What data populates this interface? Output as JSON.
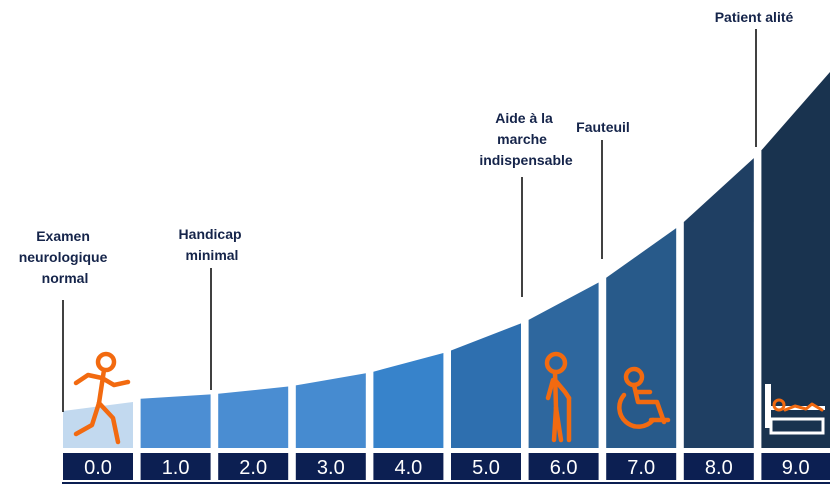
{
  "scale": {
    "steps": [
      {
        "value": "0.0",
        "color": "#c2d9ef"
      },
      {
        "value": "1.0",
        "color": "#4c8ed3"
      },
      {
        "value": "2.0",
        "color": "#4a8dd2"
      },
      {
        "value": "3.0",
        "color": "#468bd0"
      },
      {
        "value": "4.0",
        "color": "#3783cb"
      },
      {
        "value": "5.0",
        "color": "#2e6faf"
      },
      {
        "value": "6.0",
        "color": "#2e679e"
      },
      {
        "value": "7.0",
        "color": "#285a8a"
      },
      {
        "value": "8.0",
        "color": "#1f3f63"
      },
      {
        "value": "9.0",
        "color": "#19334f"
      }
    ],
    "number_box_color": "#0c1f52",
    "label_color": "#15244a",
    "icon_color": "#f26a10"
  },
  "annotations": [
    {
      "id": "examen",
      "lines": [
        "Examen",
        "neurologique",
        "normal"
      ]
    },
    {
      "id": "handicap",
      "lines": [
        "Handicap",
        "minimal"
      ]
    },
    {
      "id": "aide",
      "lines": [
        "Aide à la",
        "marche",
        "indispensable"
      ]
    },
    {
      "id": "fauteuil",
      "lines": [
        "Fauteuil"
      ]
    },
    {
      "id": "alite",
      "lines": [
        "Patient alité"
      ]
    }
  ],
  "icons": [
    {
      "id": "walking",
      "name": "walking-person-icon"
    },
    {
      "id": "cane",
      "name": "person-with-cane-icon"
    },
    {
      "id": "wheelchair",
      "name": "wheelchair-icon"
    },
    {
      "id": "bed",
      "name": "bedridden-patient-icon"
    }
  ]
}
